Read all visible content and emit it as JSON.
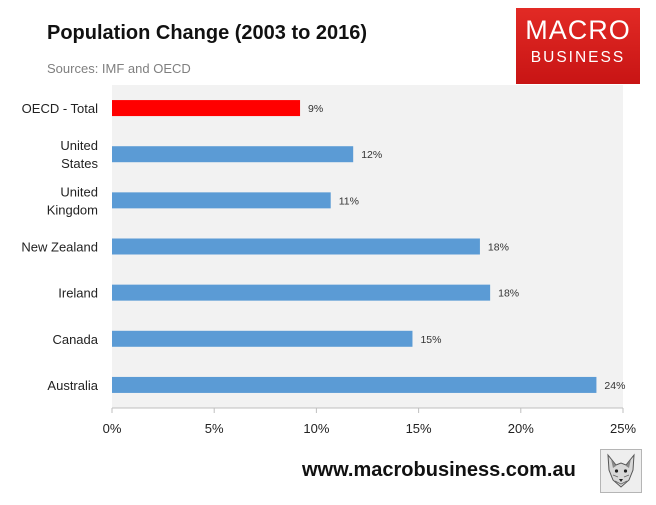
{
  "header": {
    "title": "Population Change (2003 to 2016)",
    "subtitle": "Sources: IMF and OECD"
  },
  "logo": {
    "line1": "MACRO",
    "line2": "BUSINESS"
  },
  "footer": {
    "url": "www.macrobusiness.com.au",
    "icon": "fox-icon"
  },
  "colors": {
    "highlight": "#ff0000",
    "bar": "#5b9bd5",
    "plot_bg": "#f2f2f2",
    "logo": "#d71b1b"
  },
  "chart_data": {
    "type": "bar",
    "orientation": "horizontal",
    "title": "Population Change (2003 to 2016)",
    "categories": [
      [
        "OECD - Total"
      ],
      [
        "United",
        "States"
      ],
      [
        "United",
        "Kingdom"
      ],
      [
        "New Zealand"
      ],
      [
        "Ireland"
      ],
      [
        "Canada"
      ],
      [
        "Australia"
      ]
    ],
    "values": [
      9.2,
      11.8,
      10.7,
      18.0,
      18.5,
      14.7,
      23.7
    ],
    "data_labels": [
      "9%",
      "12%",
      "11%",
      "18%",
      "18%",
      "15%",
      "24%"
    ],
    "highlight_index": 0,
    "xlim": [
      0,
      25
    ],
    "xticks": [
      0,
      5,
      10,
      15,
      20,
      25
    ],
    "xtick_labels": [
      "0%",
      "5%",
      "10%",
      "15%",
      "20%",
      "25%"
    ],
    "xlabel": "",
    "ylabel": ""
  }
}
